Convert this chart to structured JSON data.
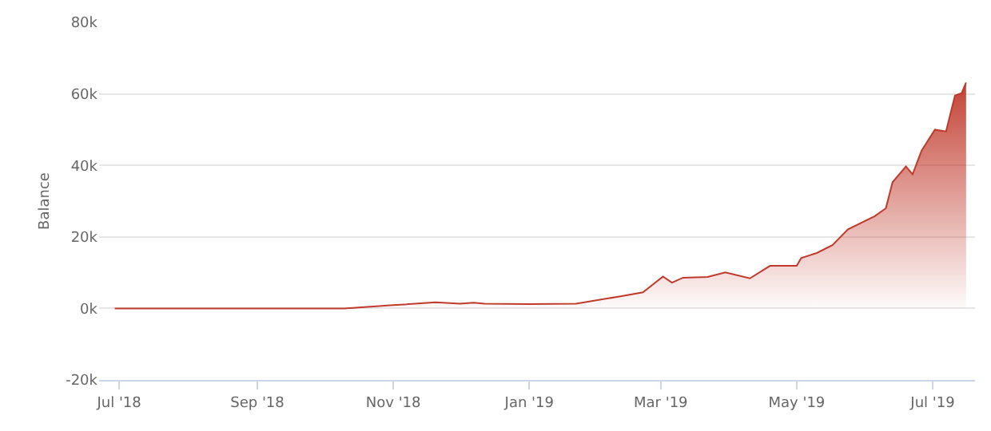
{
  "chart_data": {
    "type": "area",
    "ylabel": "Balance",
    "grid": "y",
    "x": [
      "2018-06-29",
      "2018-10-10",
      "2018-11-01",
      "2018-11-20",
      "2018-12-01",
      "2018-12-07",
      "2018-12-12",
      "2019-01-01",
      "2019-01-22",
      "2019-02-11",
      "2019-02-21",
      "2019-03-02",
      "2019-03-06",
      "2019-03-11",
      "2019-03-22",
      "2019-03-30",
      "2019-04-10",
      "2019-04-19",
      "2019-05-01",
      "2019-05-03",
      "2019-05-10",
      "2019-05-17",
      "2019-05-24",
      "2019-06-05",
      "2019-06-10",
      "2019-06-13",
      "2019-06-19",
      "2019-06-22",
      "2019-06-26",
      "2019-07-02",
      "2019-07-07",
      "2019-07-11",
      "2019-07-14",
      "2019-07-16"
    ],
    "series": [
      {
        "color": "#c0392b",
        "values": [
          0,
          0,
          900,
          1700,
          1300,
          1600,
          1300,
          1200,
          1300,
          3400,
          4500,
          8900,
          7200,
          8600,
          8800,
          10100,
          8400,
          11900,
          11900,
          14100,
          15500,
          17700,
          22100,
          25800,
          28000,
          35300,
          39700,
          37500,
          44100,
          50000,
          49500,
          59500,
          60200,
          63200
        ]
      }
    ],
    "xlim": [
      "2018-06-22",
      "2019-07-20"
    ],
    "xticks": [
      {
        "value": "2018-07-01",
        "label": "Jul '18"
      },
      {
        "value": "2018-09-01",
        "label": "Sep '18"
      },
      {
        "value": "2018-11-01",
        "label": "Nov '18"
      },
      {
        "value": "2019-01-01",
        "label": "Jan '19"
      },
      {
        "value": "2019-03-01",
        "label": "Mar '19"
      },
      {
        "value": "2019-05-01",
        "label": "May '19"
      },
      {
        "value": "2019-07-01",
        "label": "Jul '19"
      }
    ],
    "ylim": [
      -20000,
      80000
    ],
    "yticks": [
      {
        "value": -20000,
        "label": "-20k"
      },
      {
        "value": 0,
        "label": "0k"
      },
      {
        "value": 20000,
        "label": "20k"
      },
      {
        "value": 40000,
        "label": "40k"
      },
      {
        "value": 60000,
        "label": "60k"
      },
      {
        "value": 80000,
        "label": "80k"
      }
    ]
  }
}
